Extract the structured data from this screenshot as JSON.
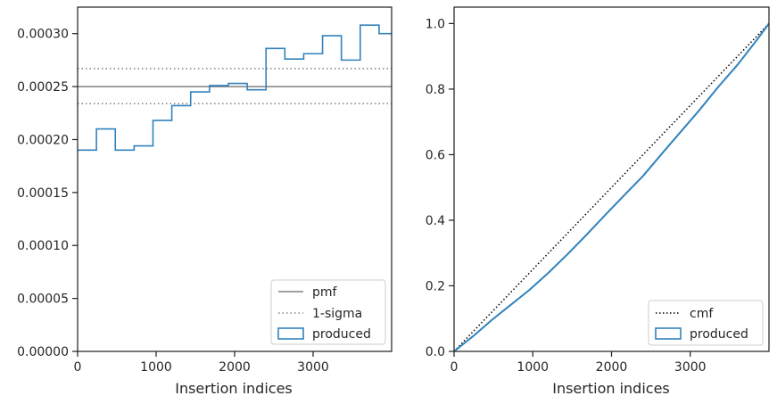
{
  "chart_data": [
    {
      "type": "step",
      "xlabel": "Insertion indices",
      "ylabel": "",
      "xlim": [
        0,
        4000
      ],
      "ylim": [
        0,
        0.000325
      ],
      "xticks": [
        0,
        1000,
        2000,
        3000
      ],
      "xtick_labels": [
        "0",
        "1000",
        "2000",
        "3000"
      ],
      "yticks": [
        0,
        5e-05,
        0.0001,
        0.00015,
        0.0002,
        0.00025,
        0.0003
      ],
      "ytick_labels": [
        "0.00000",
        "0.00005",
        "0.00010",
        "0.00015",
        "0.00020",
        "0.00025",
        "0.00030"
      ],
      "pmf": 0.00025,
      "sigma_band": [
        0.000234,
        0.000267
      ],
      "bin_edges": [
        0,
        240,
        480,
        720,
        960,
        1200,
        1440,
        1680,
        1920,
        2160,
        2400,
        2640,
        2880,
        3120,
        3360,
        3600,
        3840,
        4000
      ],
      "series": [
        {
          "name": "produced",
          "values": [
            0.00019,
            0.00021,
            0.00019,
            0.000194,
            0.000218,
            0.000232,
            0.000245,
            0.000251,
            0.000253,
            0.000247,
            0.000286,
            0.000276,
            0.000281,
            0.000298,
            0.000275,
            0.000308,
            0.0003
          ]
        }
      ],
      "legend": {
        "position": "lower-right",
        "entries": [
          "pmf",
          "1-sigma",
          "produced"
        ]
      },
      "colors": {
        "pmf": "#808080",
        "sigma": "#808080",
        "produced": "#3182bd"
      }
    },
    {
      "type": "line",
      "xlabel": "Insertion indices",
      "ylabel": "",
      "xlim": [
        0,
        4000
      ],
      "ylim": [
        0,
        1.05
      ],
      "xticks": [
        0,
        1000,
        2000,
        3000
      ],
      "xtick_labels": [
        "0",
        "1000",
        "2000",
        "3000"
      ],
      "yticks": [
        0,
        0.2,
        0.4,
        0.6,
        0.8,
        1.0
      ],
      "ytick_labels": [
        "0.0",
        "0.2",
        "0.4",
        "0.6",
        "0.8",
        "1.0"
      ],
      "series": [
        {
          "name": "cmf",
          "x": [
            0,
            4000
          ],
          "values": [
            0,
            1.0
          ]
        },
        {
          "name": "produced",
          "x": [
            0,
            240,
            480,
            720,
            960,
            1200,
            1440,
            1680,
            1920,
            2160,
            2400,
            2640,
            2880,
            3120,
            3360,
            3600,
            3840,
            4000
          ],
          "values": [
            0,
            0.046,
            0.096,
            0.142,
            0.188,
            0.24,
            0.296,
            0.355,
            0.416,
            0.476,
            0.535,
            0.603,
            0.67,
            0.737,
            0.808,
            0.874,
            0.948,
            1.0
          ]
        }
      ],
      "legend": {
        "position": "lower-right",
        "entries": [
          "cmf",
          "produced"
        ]
      },
      "colors": {
        "cmf": "#000000",
        "produced": "#3182bd"
      }
    }
  ]
}
